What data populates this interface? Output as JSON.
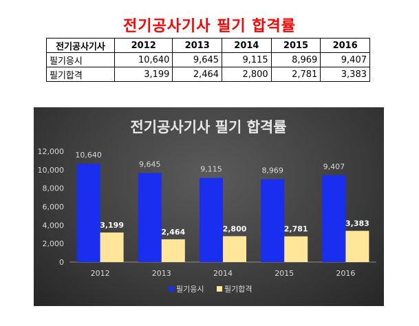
{
  "page": {
    "title": "전기공사기사 필기 합격률"
  },
  "table": {
    "corner": "전기공사기사",
    "years": [
      "2012",
      "2013",
      "2014",
      "2015",
      "2016"
    ],
    "rows": [
      {
        "label": "필기응시",
        "values": [
          "10,640",
          "9,645",
          "9,115",
          "8,969",
          "9,407"
        ]
      },
      {
        "label": "필기합격",
        "values": [
          "3,199",
          "2,464",
          "2,800",
          "2,781",
          "3,383"
        ]
      }
    ]
  },
  "chart_data": {
    "type": "bar",
    "title": "전기공사기사 필기 합격률",
    "categories": [
      "2012",
      "2013",
      "2014",
      "2015",
      "2016"
    ],
    "series": [
      {
        "name": "필기응시",
        "values": [
          10640,
          9645,
          9115,
          8969,
          9407
        ],
        "color": "#1a2ef0",
        "labels": [
          "10,640",
          "9,645",
          "9,115",
          "8,969",
          "9,407"
        ]
      },
      {
        "name": "필기합격",
        "values": [
          3199,
          2464,
          2800,
          2781,
          3383
        ],
        "color": "#ffe699",
        "labels": [
          "3,199",
          "2,464",
          "2,800",
          "2,781",
          "3,383"
        ]
      }
    ],
    "ylim": [
      0,
      12000
    ],
    "yticks": [
      "0",
      "2,000",
      "4,000",
      "6,000",
      "8,000",
      "10,000",
      "12,000"
    ],
    "ytick_values": [
      0,
      2000,
      4000,
      6000,
      8000,
      10000,
      12000
    ],
    "grid": false,
    "legend": "bottom",
    "background": "#404040",
    "text_color": "#d9d9d9"
  }
}
